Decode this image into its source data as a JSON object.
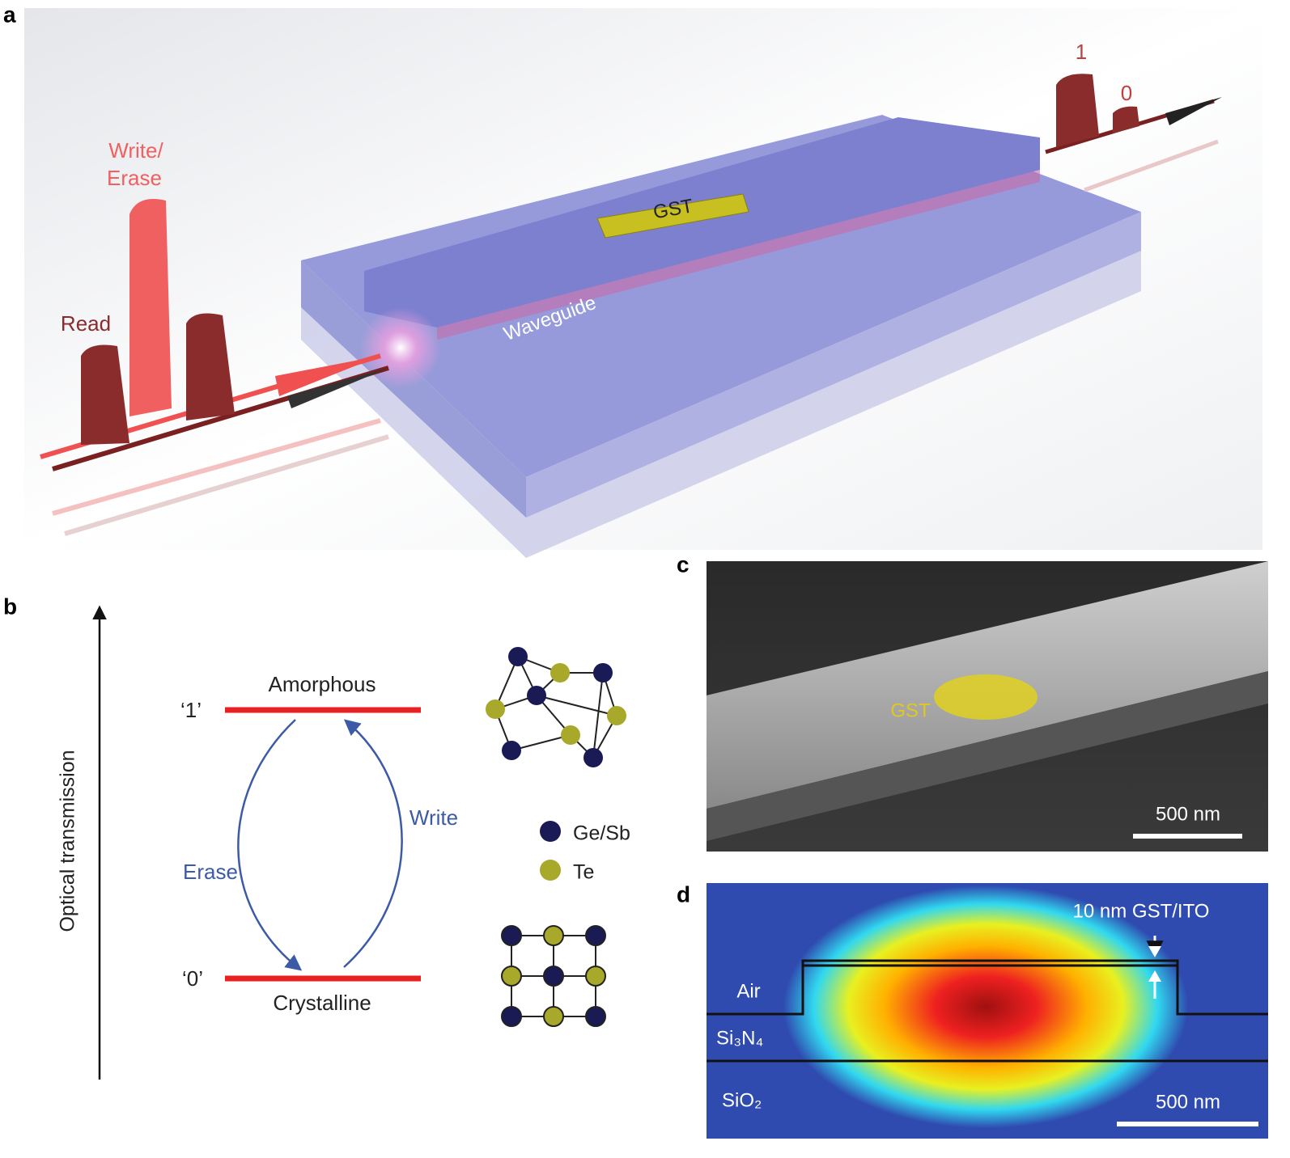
{
  "panels": {
    "a": {
      "letter": "a",
      "write_erase": [
        "Write/",
        "Erase"
      ],
      "read": "Read",
      "gst": "GST",
      "waveguide": "Waveguide",
      "one": "1",
      "zero": "0"
    },
    "b": {
      "letter": "b",
      "axis": "Optical transmission",
      "level_1": "‘1’",
      "level_0": "‘0’",
      "amorphous": "Amorphous",
      "crystalline": "Crystalline",
      "erase": "Erase",
      "write": "Write",
      "legend": [
        "Ge/Sb",
        "Te"
      ]
    },
    "c": {
      "letter": "c",
      "gst": "GST",
      "scale": "500 nm"
    },
    "d": {
      "letter": "d",
      "layer": "10 nm GST/ITO",
      "air": "Air",
      "si3n4": "Si₃N₄",
      "sio2": "SiO₂",
      "scale": "500 nm"
    }
  }
}
